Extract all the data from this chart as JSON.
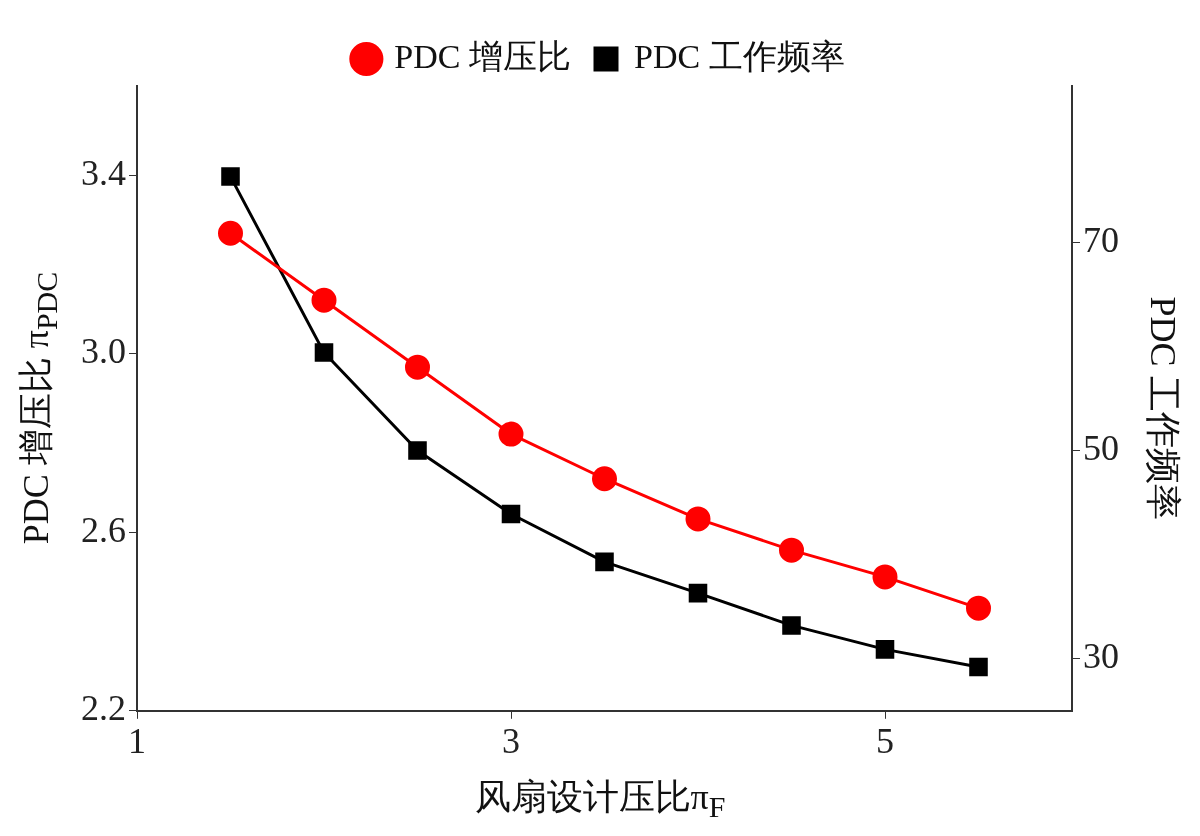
{
  "chart_data": {
    "type": "line",
    "xlabel": "风扇设计压比π$_{F}$",
    "ylabel": "PDC 增压比 π$_{PDC}$",
    "y2label": "PDC 工作频率",
    "x": [
      1.5,
      2,
      2.5,
      3,
      3.5,
      4,
      4.5,
      5,
      5.5
    ],
    "series": [
      {
        "name": "PDC 增压比",
        "color": "#ff0000",
        "marker": "circle",
        "values": [
          3.27,
          3.12,
          2.97,
          2.82,
          2.72,
          2.63,
          2.56,
          2.5,
          2.43
        ]
      },
      {
        "name": "PDC 工作频率",
        "color": "#000000",
        "marker": "square",
        "axis": "y2",
        "values": [
          76.3,
          59.4,
          50,
          43.9,
          39.3,
          36.3,
          33.2,
          30.9,
          29.2
        ]
      }
    ],
    "xlim": [
      1,
      6
    ],
    "xticks": [
      1,
      3,
      5
    ],
    "ylim": [
      2.2,
      3.6
    ],
    "yticks": [
      2.2,
      2.6,
      {
        "value": 3,
        "label": "3.0"
      },
      3.4
    ],
    "y2lim": [
      25,
      85
    ],
    "y2ticks": [
      30,
      50,
      70
    ],
    "legend": "top",
    "grid": false
  }
}
